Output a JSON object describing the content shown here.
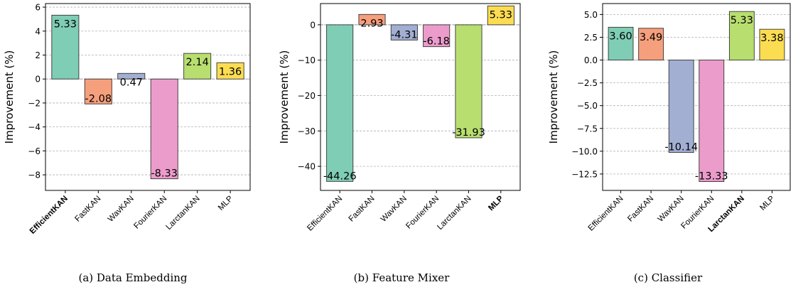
{
  "colors": [
    "#7fcdb5",
    "#f69f7c",
    "#a2aed2",
    "#eb9ccb",
    "#b8de6f",
    "#fcdd52"
  ],
  "chart_data": [
    {
      "type": "bar",
      "caption": "(a) Data Embedding",
      "ylabel": "Improvement (%)",
      "ylim": [
        -9.3,
        6.3
      ],
      "yticks": [
        -8,
        -6,
        -4,
        -2,
        0,
        2,
        4,
        6
      ],
      "ytick_labels": [
        "−8",
        "−6",
        "−4",
        "−2",
        "0",
        "2",
        "4",
        "6"
      ],
      "categories": [
        "EfficientKAN",
        "FastKAN",
        "WavKAN",
        "FourierKAN",
        "LarctanKAN",
        "MLP"
      ],
      "values": [
        5.33,
        -2.08,
        0.47,
        -8.33,
        2.14,
        1.36
      ],
      "labels": [
        "5.33",
        "-2.08",
        "0.47",
        "-8.33",
        "2.14",
        "1.36"
      ],
      "bold_category": "EfficientKAN",
      "grid": "y"
    },
    {
      "type": "bar",
      "caption": "(b) Feature Mixer",
      "ylabel": "Improvement (%)",
      "ylim": [
        -46.8,
        6.0
      ],
      "yticks": [
        -40,
        -30,
        -20,
        -10,
        0
      ],
      "ytick_labels": [
        "−40",
        "−30",
        "−20",
        "−10",
        "0"
      ],
      "categories": [
        "EfficientKAN",
        "FastKAN",
        "WavKAN",
        "FourierKAN",
        "LarctanKAN",
        "MLP"
      ],
      "values": [
        -44.26,
        2.93,
        -4.31,
        -6.18,
        -31.93,
        5.33
      ],
      "labels": [
        "-44.26",
        "2.93",
        "-4.31",
        "-6.18",
        "-31.93",
        "5.33"
      ],
      "bold_category": "MLP",
      "grid": "y"
    },
    {
      "type": "bar",
      "caption": "(c) Classifier",
      "ylabel": "Improvement (%)",
      "ylim": [
        -14.3,
        6.2
      ],
      "yticks": [
        -12.5,
        -10.0,
        -7.5,
        -5.0,
        -2.5,
        0.0,
        2.5,
        5.0
      ],
      "ytick_labels": [
        "−12.5",
        "−10.0",
        "−7.5",
        "−5.0",
        "−2.5",
        "0.0",
        "2.5",
        "5.0"
      ],
      "categories": [
        "EfficientKAN",
        "FastKAN",
        "WavKAN",
        "FourierKAN",
        "LarctanKAN",
        "MLP"
      ],
      "values": [
        3.6,
        3.49,
        -10.14,
        -13.33,
        5.33,
        3.38
      ],
      "labels": [
        "3.60",
        "3.49",
        "-10.14",
        "-13.33",
        "5.33",
        "3.38"
      ],
      "bold_category": "LarctanKAN",
      "grid": "y"
    }
  ]
}
